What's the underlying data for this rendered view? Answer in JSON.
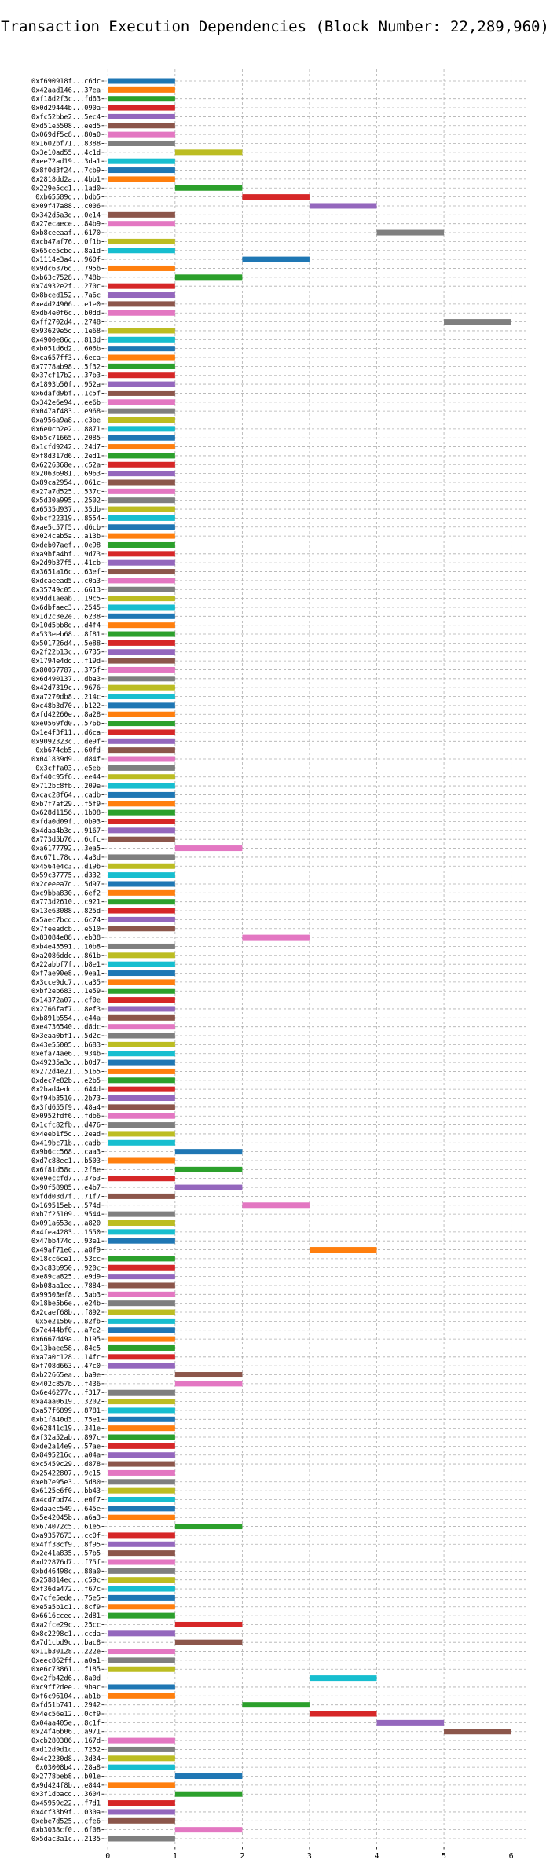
{
  "chart_data": {
    "type": "bar",
    "orientation": "horizontal",
    "title": "Transaction Execution Dependencies (Block Number: 22,289,960)",
    "xlabel": "",
    "ylabel": "",
    "xlim": [
      -0.05,
      6.25
    ],
    "xticks": [
      0,
      1,
      2,
      3,
      4,
      5,
      6
    ],
    "grid": true,
    "colors": [
      "#1f77b4",
      "#ff7f0e",
      "#2ca02c",
      "#d62728",
      "#9467bd",
      "#8c564b",
      "#e377c2",
      "#7f7f7f",
      "#bcbd22",
      "#17becf"
    ],
    "transactions": [
      {
        "label": "0xf690918f...c6dc",
        "start": 0,
        "end": 1
      },
      {
        "label": "0x42aad146...37ea",
        "start": 0,
        "end": 1
      },
      {
        "label": "0xf18d2f3c...fd63",
        "start": 0,
        "end": 1
      },
      {
        "label": "0x0d29444b...090a",
        "start": 0,
        "end": 1
      },
      {
        "label": "0xfc52bbe2...5ec4",
        "start": 0,
        "end": 1
      },
      {
        "label": "0xd51e5508...eed5",
        "start": 0,
        "end": 1
      },
      {
        "label": "0x069df5c8...80a0",
        "start": 0,
        "end": 1
      },
      {
        "label": "0x1602bf71...8388",
        "start": 0,
        "end": 1
      },
      {
        "label": "0x3e10ad55...4c1d",
        "start": 1,
        "end": 2
      },
      {
        "label": "0xee72ad19...3da1",
        "start": 0,
        "end": 1
      },
      {
        "label": "0x8f0d3f24...7cb9",
        "start": 0,
        "end": 1
      },
      {
        "label": "0x2818dd2a...4bb1",
        "start": 0,
        "end": 1
      },
      {
        "label": "0x229e5cc1...1ad0",
        "start": 1,
        "end": 2
      },
      {
        "label": "0xb65589d...bdb5",
        "start": 2,
        "end": 3
      },
      {
        "label": "0x09f47a88...c006",
        "start": 3,
        "end": 4
      },
      {
        "label": "0x342d5a3d...0e14",
        "start": 0,
        "end": 1
      },
      {
        "label": "0x27ecaece...84b9",
        "start": 0,
        "end": 1
      },
      {
        "label": "0xb8ceeaaf...6170",
        "start": 4,
        "end": 5
      },
      {
        "label": "0xcb47af76...0f1b",
        "start": 0,
        "end": 1
      },
      {
        "label": "0x65ce5cbe...8a1d",
        "start": 0,
        "end": 1
      },
      {
        "label": "0x1114e3a4...960f",
        "start": 2,
        "end": 3
      },
      {
        "label": "0x9dc6376d...795b",
        "start": 0,
        "end": 1
      },
      {
        "label": "0xb63c7528...748b",
        "start": 1,
        "end": 2
      },
      {
        "label": "0x74932e2f...270c",
        "start": 0,
        "end": 1
      },
      {
        "label": "0x8bced152...7a6c",
        "start": 0,
        "end": 1
      },
      {
        "label": "0xe4d24906...e1e0",
        "start": 0,
        "end": 1
      },
      {
        "label": "0xdb4e0f6c...b0dd",
        "start": 0,
        "end": 1
      },
      {
        "label": "0xff2702d4...2748",
        "start": 5,
        "end": 6
      },
      {
        "label": "0x93629e5d...1e68",
        "start": 0,
        "end": 1
      },
      {
        "label": "0x4900e86d...813d",
        "start": 0,
        "end": 1
      },
      {
        "label": "0xb051d6d2...606b",
        "start": 0,
        "end": 1
      },
      {
        "label": "0xca657ff3...6eca",
        "start": 0,
        "end": 1
      },
      {
        "label": "0x7778ab98...5f32",
        "start": 0,
        "end": 1
      },
      {
        "label": "0x37cf17b2...37b3",
        "start": 0,
        "end": 1
      },
      {
        "label": "0x1893b50f...952a",
        "start": 0,
        "end": 1
      },
      {
        "label": "0x6dafd9bf...1c5f",
        "start": 0,
        "end": 1
      },
      {
        "label": "0x342e6e94...ee6b",
        "start": 0,
        "end": 1
      },
      {
        "label": "0x047af483...e968",
        "start": 0,
        "end": 1
      },
      {
        "label": "0xa956a9a8...c3be",
        "start": 0,
        "end": 1
      },
      {
        "label": "0x6e0cb2e2...8871",
        "start": 0,
        "end": 1
      },
      {
        "label": "0xb5c71665...2085",
        "start": 0,
        "end": 1
      },
      {
        "label": "0x1cfd9242...24d7",
        "start": 0,
        "end": 1
      },
      {
        "label": "0xf8d317d6...2ed1",
        "start": 0,
        "end": 1
      },
      {
        "label": "0x6226368e...c52a",
        "start": 0,
        "end": 1
      },
      {
        "label": "0x20636981...6963",
        "start": 0,
        "end": 1
      },
      {
        "label": "0x89ca2954...061c",
        "start": 0,
        "end": 1
      },
      {
        "label": "0x27a7d525...537c",
        "start": 0,
        "end": 1
      },
      {
        "label": "0x5d30a995...2502",
        "start": 0,
        "end": 1
      },
      {
        "label": "0x6535d937...35db",
        "start": 0,
        "end": 1
      },
      {
        "label": "0xbcf22319...8554",
        "start": 0,
        "end": 1
      },
      {
        "label": "0xae5c57f5...d6cb",
        "start": 0,
        "end": 1
      },
      {
        "label": "0x024cab5a...a13b",
        "start": 0,
        "end": 1
      },
      {
        "label": "0xdeb07aef...0e98",
        "start": 0,
        "end": 1
      },
      {
        "label": "0xa9bfa4bf...9d73",
        "start": 0,
        "end": 1
      },
      {
        "label": "0x2d9b37f5...41cb",
        "start": 0,
        "end": 1
      },
      {
        "label": "0x3651a16c...63ef",
        "start": 0,
        "end": 1
      },
      {
        "label": "0xdcaeead5...c0a3",
        "start": 0,
        "end": 1
      },
      {
        "label": "0x35749c05...6613",
        "start": 0,
        "end": 1
      },
      {
        "label": "0x9dd1aeab...19c5",
        "start": 0,
        "end": 1
      },
      {
        "label": "0x6dbfaec3...2545",
        "start": 0,
        "end": 1
      },
      {
        "label": "0x1d2c3e2e...6238",
        "start": 0,
        "end": 1
      },
      {
        "label": "0x10d5bb8d...d4f4",
        "start": 0,
        "end": 1
      },
      {
        "label": "0x533eeb68...8f81",
        "start": 0,
        "end": 1
      },
      {
        "label": "0x501726d4...5e88",
        "start": 0,
        "end": 1
      },
      {
        "label": "0x2f22b13c...6735",
        "start": 0,
        "end": 1
      },
      {
        "label": "0x1794e4dd...f19d",
        "start": 0,
        "end": 1
      },
      {
        "label": "0x80057787...375f",
        "start": 0,
        "end": 1
      },
      {
        "label": "0x6d490137...dba3",
        "start": 0,
        "end": 1
      },
      {
        "label": "0x42d7319c...9676",
        "start": 0,
        "end": 1
      },
      {
        "label": "0xa7270db8...214c",
        "start": 0,
        "end": 1
      },
      {
        "label": "0xc48b3d70...b122",
        "start": 0,
        "end": 1
      },
      {
        "label": "0xfd42260e...8a28",
        "start": 0,
        "end": 1
      },
      {
        "label": "0xe0569fd0...576b",
        "start": 0,
        "end": 1
      },
      {
        "label": "0x1e4f3f11...d6ca",
        "start": 0,
        "end": 1
      },
      {
        "label": "0x9092323c...de9f",
        "start": 0,
        "end": 1
      },
      {
        "label": "0xb674cb5...60fd",
        "start": 0,
        "end": 1
      },
      {
        "label": "0x041839d9...d84f",
        "start": 0,
        "end": 1
      },
      {
        "label": "0x3cffa03...e5eb",
        "start": 0,
        "end": 1
      },
      {
        "label": "0xf40c95f6...ee44",
        "start": 0,
        "end": 1
      },
      {
        "label": "0x712bc8fb...209e",
        "start": 0,
        "end": 1
      },
      {
        "label": "0xcac28f64...cadb",
        "start": 0,
        "end": 1
      },
      {
        "label": "0xb7f7af29...f5f9",
        "start": 0,
        "end": 1
      },
      {
        "label": "0x628d1156...1b08",
        "start": 0,
        "end": 1
      },
      {
        "label": "0xfda0d09f...0b93",
        "start": 0,
        "end": 1
      },
      {
        "label": "0x4daa4b3d...9167",
        "start": 0,
        "end": 1
      },
      {
        "label": "0x773d5b76...6cfc",
        "start": 0,
        "end": 1
      },
      {
        "label": "0xa6177792...3ea5",
        "start": 1,
        "end": 2
      },
      {
        "label": "0xc671c78c...4a3d",
        "start": 0,
        "end": 1
      },
      {
        "label": "0x4564e4c3...d19b",
        "start": 0,
        "end": 1
      },
      {
        "label": "0x59c37775...d332",
        "start": 0,
        "end": 1
      },
      {
        "label": "0x2ceeea7d...5d97",
        "start": 0,
        "end": 1
      },
      {
        "label": "0xc9bba830...6ef2",
        "start": 0,
        "end": 1
      },
      {
        "label": "0x773d2610...c921",
        "start": 0,
        "end": 1
      },
      {
        "label": "0x13e63088...825d",
        "start": 0,
        "end": 1
      },
      {
        "label": "0x5aec7bcd...6c74",
        "start": 0,
        "end": 1
      },
      {
        "label": "0x7feeadcb...e510",
        "start": 0,
        "end": 1
      },
      {
        "label": "0x83084e88...eb38",
        "start": 2,
        "end": 3
      },
      {
        "label": "0xb4e45591...10b8",
        "start": 0,
        "end": 1
      },
      {
        "label": "0xa2086ddc...861b",
        "start": 0,
        "end": 1
      },
      {
        "label": "0x22abbf7f...b8e1",
        "start": 0,
        "end": 1
      },
      {
        "label": "0xf7ae90e8...9ea1",
        "start": 0,
        "end": 1
      },
      {
        "label": "0x3cce9dc7...ca35",
        "start": 0,
        "end": 1
      },
      {
        "label": "0xbf2eb683...1e59",
        "start": 0,
        "end": 1
      },
      {
        "label": "0x14372a07...cf0e",
        "start": 0,
        "end": 1
      },
      {
        "label": "0x2766faf7...8ef3",
        "start": 0,
        "end": 1
      },
      {
        "label": "0xb891b554...e44a",
        "start": 0,
        "end": 1
      },
      {
        "label": "0xe4736540...d8dc",
        "start": 0,
        "end": 1
      },
      {
        "label": "0x3eaa0bf1...5d2c",
        "start": 0,
        "end": 1
      },
      {
        "label": "0x43e55005...b683",
        "start": 0,
        "end": 1
      },
      {
        "label": "0xefa74ae6...934b",
        "start": 0,
        "end": 1
      },
      {
        "label": "0x49235a3d...b0d7",
        "start": 0,
        "end": 1
      },
      {
        "label": "0x272d4e21...5165",
        "start": 0,
        "end": 1
      },
      {
        "label": "0xdec7e82b...e2b5",
        "start": 0,
        "end": 1
      },
      {
        "label": "0x2bad4edd...644d",
        "start": 0,
        "end": 1
      },
      {
        "label": "0xf94b3510...2b73",
        "start": 0,
        "end": 1
      },
      {
        "label": "0x3fd655f9...48a4",
        "start": 0,
        "end": 1
      },
      {
        "label": "0x0952fdf6...fdb6",
        "start": 0,
        "end": 1
      },
      {
        "label": "0x1cfc82fb...d476",
        "start": 0,
        "end": 1
      },
      {
        "label": "0x4eeb1f5d...2ead",
        "start": 0,
        "end": 1
      },
      {
        "label": "0x419bc71b...cadb",
        "start": 0,
        "end": 1
      },
      {
        "label": "0x9b6cc568...caa3",
        "start": 1,
        "end": 2
      },
      {
        "label": "0xd7c88ec1...b503",
        "start": 0,
        "end": 1
      },
      {
        "label": "0x6f81d58c...2f8e",
        "start": 1,
        "end": 2
      },
      {
        "label": "0xe9eccfd7...3763",
        "start": 0,
        "end": 1
      },
      {
        "label": "0x90f58985...e4b7",
        "start": 1,
        "end": 2
      },
      {
        "label": "0xfdd03d7f...71f7",
        "start": 0,
        "end": 1
      },
      {
        "label": "0x169515eb...574d",
        "start": 2,
        "end": 3
      },
      {
        "label": "0xb7f25109...9544",
        "start": 0,
        "end": 1
      },
      {
        "label": "0x091a653e...a820",
        "start": 0,
        "end": 1
      },
      {
        "label": "0x4fea4283...1550",
        "start": 0,
        "end": 1
      },
      {
        "label": "0x47bb474d...93e1",
        "start": 0,
        "end": 1
      },
      {
        "label": "0x49af71e0...a8f9",
        "start": 3,
        "end": 4
      },
      {
        "label": "0x18cc6ce1...53cc",
        "start": 0,
        "end": 1
      },
      {
        "label": "0x3c83b950...920c",
        "start": 0,
        "end": 1
      },
      {
        "label": "0xe89ca825...e9d9",
        "start": 0,
        "end": 1
      },
      {
        "label": "0xb08aa1ee...7884",
        "start": 0,
        "end": 1
      },
      {
        "label": "0x99503ef8...5ab3",
        "start": 0,
        "end": 1
      },
      {
        "label": "0x18be5b6e...e24b",
        "start": 0,
        "end": 1
      },
      {
        "label": "0x2caef68b...f892",
        "start": 0,
        "end": 1
      },
      {
        "label": "0x5e215b0...82fb",
        "start": 0,
        "end": 1
      },
      {
        "label": "0x7e444bf0...a7c2",
        "start": 0,
        "end": 1
      },
      {
        "label": "0x6667d49a...b195",
        "start": 0,
        "end": 1
      },
      {
        "label": "0x13baee58...84c5",
        "start": 0,
        "end": 1
      },
      {
        "label": "0xa7a0c128...14fc",
        "start": 0,
        "end": 1
      },
      {
        "label": "0xf708d663...47c0",
        "start": 0,
        "end": 1
      },
      {
        "label": "0xb22665ea...ba9e",
        "start": 1,
        "end": 2
      },
      {
        "label": "0x402c857b...f436",
        "start": 1,
        "end": 2
      },
      {
        "label": "0x6e46277c...f317",
        "start": 0,
        "end": 1
      },
      {
        "label": "0xa4aa0619...3202",
        "start": 0,
        "end": 1
      },
      {
        "label": "0xa57f6899...8781",
        "start": 0,
        "end": 1
      },
      {
        "label": "0xb1f840d3...75e1",
        "start": 0,
        "end": 1
      },
      {
        "label": "0x62841c19...341e",
        "start": 0,
        "end": 1
      },
      {
        "label": "0xf32a52ab...897c",
        "start": 0,
        "end": 1
      },
      {
        "label": "0xde2a14e9...57ae",
        "start": 0,
        "end": 1
      },
      {
        "label": "0x8495216c...a04a",
        "start": 0,
        "end": 1
      },
      {
        "label": "0xc5459c29...d878",
        "start": 0,
        "end": 1
      },
      {
        "label": "0x25422807...9c15",
        "start": 0,
        "end": 1
      },
      {
        "label": "0xeb7e95e3...5d80",
        "start": 0,
        "end": 1
      },
      {
        "label": "0x6125e6f0...bb43",
        "start": 0,
        "end": 1
      },
      {
        "label": "0x4cd7bd74...e0f7",
        "start": 0,
        "end": 1
      },
      {
        "label": "0xdaaec549...645e",
        "start": 0,
        "end": 1
      },
      {
        "label": "0x5e42045b...a6a3",
        "start": 0,
        "end": 1
      },
      {
        "label": "0x674072c5...61e5",
        "start": 1,
        "end": 2
      },
      {
        "label": "0xa9357673...cc0f",
        "start": 0,
        "end": 1
      },
      {
        "label": "0x4ff38cf9...8f95",
        "start": 0,
        "end": 1
      },
      {
        "label": "0x2e41a835...57b5",
        "start": 0,
        "end": 1
      },
      {
        "label": "0xd22876d7...f75f",
        "start": 0,
        "end": 1
      },
      {
        "label": "0xbd46498c...88a0",
        "start": 0,
        "end": 1
      },
      {
        "label": "0x258814ec...c59c",
        "start": 0,
        "end": 1
      },
      {
        "label": "0xf36da472...f67c",
        "start": 0,
        "end": 1
      },
      {
        "label": "0x7cfe5ede...75e5",
        "start": 0,
        "end": 1
      },
      {
        "label": "0xe5a5b1c1...8cf9",
        "start": 0,
        "end": 1
      },
      {
        "label": "0x6616cced...2d81",
        "start": 0,
        "end": 1
      },
      {
        "label": "0xa2fce29c...25cc",
        "start": 1,
        "end": 2
      },
      {
        "label": "0x8c2298c1...ccda",
        "start": 0,
        "end": 1
      },
      {
        "label": "0x7d1cbd9c...bac8",
        "start": 1,
        "end": 2
      },
      {
        "label": "0x11b30128...222e",
        "start": 0,
        "end": 1
      },
      {
        "label": "0xeec862ff...a0a1",
        "start": 0,
        "end": 1
      },
      {
        "label": "0xe6c73861...f185",
        "start": 0,
        "end": 1
      },
      {
        "label": "0xc2fb42d6...8a0d",
        "start": 3,
        "end": 4
      },
      {
        "label": "0xc9ff2dee...9bac",
        "start": 0,
        "end": 1
      },
      {
        "label": "0xf6c96104...ab1b",
        "start": 0,
        "end": 1
      },
      {
        "label": "0xfd51b741...2942",
        "start": 2,
        "end": 3
      },
      {
        "label": "0x4ec56e12...0cf9",
        "start": 3,
        "end": 4
      },
      {
        "label": "0x04aa405e...8c1f",
        "start": 4,
        "end": 5
      },
      {
        "label": "0x24f46b06...a971",
        "start": 5,
        "end": 6
      },
      {
        "label": "0xcb280386...167d",
        "start": 0,
        "end": 1
      },
      {
        "label": "0xd12d9d1c...7252",
        "start": 0,
        "end": 1
      },
      {
        "label": "0x4c2230d8...3d34",
        "start": 0,
        "end": 1
      },
      {
        "label": "0x03008b4...28a8",
        "start": 0,
        "end": 1
      },
      {
        "label": "0x2778beb8...b01e",
        "start": 1,
        "end": 2
      },
      {
        "label": "0x9d424f8b...e844",
        "start": 0,
        "end": 1
      },
      {
        "label": "0x3f1dbacd...3604",
        "start": 1,
        "end": 2
      },
      {
        "label": "0x45959c22...f7d1",
        "start": 0,
        "end": 1
      },
      {
        "label": "0x4cf33b9f...030a",
        "start": 0,
        "end": 1
      },
      {
        "label": "0xebe7d525...cfe6",
        "start": 0,
        "end": 1
      },
      {
        "label": "0xb3038cf0...6f08",
        "start": 1,
        "end": 2
      },
      {
        "label": "0x5dac3a1c...2135",
        "start": 0,
        "end": 1
      }
    ]
  }
}
